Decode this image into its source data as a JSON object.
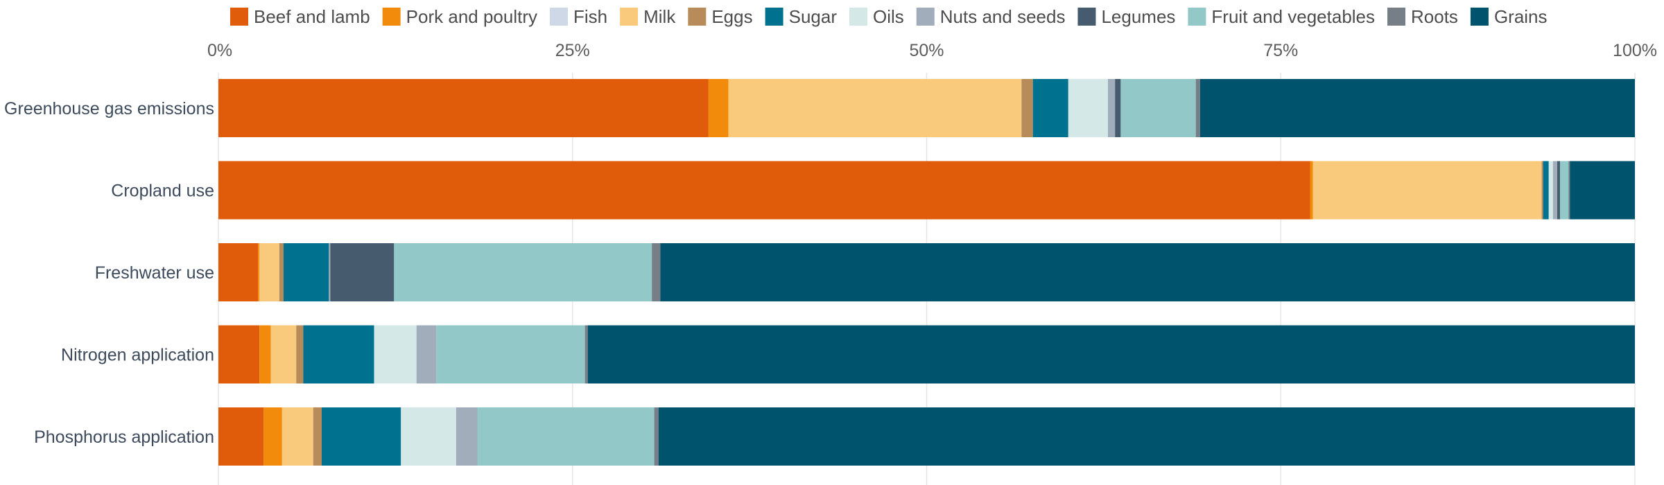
{
  "chart_data": {
    "type": "bar",
    "orientation": "horizontal",
    "stacked": true,
    "normalized": true,
    "title": "",
    "xlabel": "",
    "ylabel": "",
    "xlim": [
      0,
      100
    ],
    "x_ticks": [
      "0%",
      "25%",
      "50%",
      "75%",
      "100%"
    ],
    "grid": true,
    "legend_position": "top",
    "categories": [
      "Greenhouse gas emissions",
      "Cropland use",
      "Freshwater use",
      "Nitrogen application",
      "Phosphorus application"
    ],
    "series": [
      {
        "name": "Beef and lamb",
        "color": "#e05c0a",
        "values": [
          34.6,
          77.3,
          2.8,
          2.9,
          3.2
        ]
      },
      {
        "name": "Pork and poultry",
        "color": "#f28b0c",
        "values": [
          1.4,
          0.2,
          0.1,
          0.8,
          1.3
        ]
      },
      {
        "name": "Fish",
        "color": "#cfd8e6",
        "values": [
          0.0,
          0.0,
          0.0,
          0.0,
          0.0
        ]
      },
      {
        "name": "Milk",
        "color": "#f9c97c",
        "values": [
          20.7,
          16.2,
          1.4,
          1.8,
          2.2
        ]
      },
      {
        "name": "Eggs",
        "color": "#b78c5a",
        "values": [
          0.8,
          0.1,
          0.3,
          0.5,
          0.6
        ]
      },
      {
        "name": "Sugar",
        "color": "#00728f",
        "values": [
          2.5,
          0.4,
          3.2,
          5.0,
          5.6
        ]
      },
      {
        "name": "Oils",
        "color": "#d3e8e7",
        "values": [
          2.8,
          0.3,
          0.0,
          3.0,
          3.9
        ]
      },
      {
        "name": "Nuts and seeds",
        "color": "#a2adbb",
        "values": [
          0.5,
          0.3,
          0.1,
          1.4,
          1.5
        ]
      },
      {
        "name": "Legumes",
        "color": "#465b6e",
        "values": [
          0.4,
          0.2,
          4.5,
          0.0,
          0.0
        ]
      },
      {
        "name": "Fruit and vegetables",
        "color": "#93c8c8",
        "values": [
          5.3,
          0.6,
          18.2,
          10.5,
          12.5
        ]
      },
      {
        "name": "Roots",
        "color": "#767e88",
        "values": [
          0.3,
          0.1,
          0.6,
          0.2,
          0.3
        ]
      },
      {
        "name": "Grains",
        "color": "#00536d",
        "values": [
          30.7,
          4.6,
          68.8,
          74.0,
          69.0
        ]
      }
    ]
  }
}
